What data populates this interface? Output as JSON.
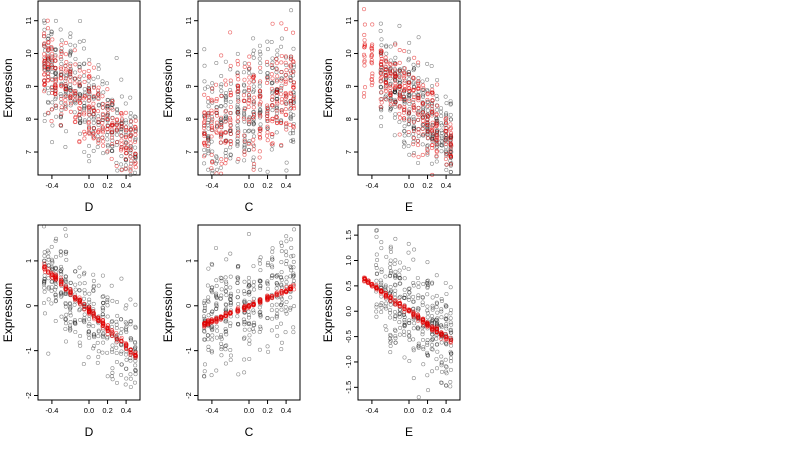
{
  "chart_data": [
    {
      "type": "scatter",
      "xlabel": "D",
      "ylabel": "Expression",
      "xlim": [
        -0.55,
        0.55
      ],
      "ylim": [
        6.3,
        11.6
      ],
      "xticks": [
        -0.4,
        0.0,
        0.2,
        0.4
      ],
      "xtick_labels": [
        "-0.4",
        "0.0",
        "0.2",
        "0.4"
      ],
      "yticks": [
        7,
        8,
        9,
        10,
        11
      ],
      "ytick_labels": [
        "7",
        "8",
        "9",
        "10",
        "11"
      ],
      "series": [
        {
          "role": "observed",
          "color": "#000000",
          "params": {
            "x_values": [
              -0.48,
              -0.44,
              -0.4,
              -0.36,
              -0.3,
              -0.25,
              -0.2,
              -0.15,
              -0.1,
              -0.05,
              0.0,
              0.05,
              0.1,
              0.15,
              0.2,
              0.25,
              0.3,
              0.35,
              0.4,
              0.45,
              0.5
            ],
            "intercept": 8.4,
            "slope": -2.6,
            "spread": 0.75,
            "n": 380,
            "seed": 11
          }
        },
        {
          "role": "fitted",
          "color": "#e00000",
          "params": {
            "x_values": [
              -0.48,
              -0.44,
              -0.4,
              -0.36,
              -0.3,
              -0.25,
              -0.2,
              -0.15,
              -0.1,
              -0.05,
              0.0,
              0.05,
              0.1,
              0.15,
              0.2,
              0.25,
              0.3,
              0.35,
              0.4,
              0.45,
              0.5
            ],
            "intercept": 8.4,
            "slope": -2.6,
            "spread": 0.55,
            "n": 300,
            "seed": 12
          }
        }
      ]
    },
    {
      "type": "scatter",
      "xlabel": "C",
      "ylabel": "Expression",
      "xlim": [
        -0.55,
        0.55
      ],
      "ylim": [
        6.3,
        11.6
      ],
      "xticks": [
        -0.4,
        0.0,
        0.2,
        0.4
      ],
      "xtick_labels": [
        "-0.4",
        "0.0",
        "0.2",
        "0.4"
      ],
      "yticks": [
        7,
        8,
        9,
        10,
        11
      ],
      "ytick_labels": [
        "7",
        "8",
        "9",
        "10",
        "11"
      ],
      "series": [
        {
          "role": "observed",
          "color": "#000000",
          "params": {
            "x_values": [
              -0.48,
              -0.44,
              -0.4,
              -0.35,
              -0.3,
              -0.25,
              -0.2,
              -0.12,
              -0.05,
              0.0,
              0.05,
              0.12,
              0.2,
              0.25,
              0.3,
              0.35,
              0.4,
              0.45,
              0.48
            ],
            "intercept": 8.3,
            "slope": 1.4,
            "spread": 0.95,
            "n": 340,
            "seed": 21
          }
        },
        {
          "role": "fitted",
          "color": "#e00000",
          "params": {
            "x_values": [
              -0.48,
              -0.44,
              -0.4,
              -0.35,
              -0.3,
              -0.25,
              -0.2,
              -0.12,
              -0.05,
              0.0,
              0.05,
              0.12,
              0.2,
              0.25,
              0.3,
              0.35,
              0.4,
              0.45,
              0.48
            ],
            "intercept": 8.3,
            "slope": 1.4,
            "spread": 0.8,
            "n": 280,
            "seed": 22
          }
        }
      ]
    },
    {
      "type": "scatter",
      "xlabel": "E",
      "ylabel": "Expression",
      "xlim": [
        -0.55,
        0.55
      ],
      "ylim": [
        6.3,
        11.6
      ],
      "xticks": [
        -0.4,
        0.0,
        0.2,
        0.4
      ],
      "xtick_labels": [
        "-0.4",
        "0.0",
        "0.2",
        "0.4"
      ],
      "yticks": [
        7,
        8,
        9,
        10,
        11
      ],
      "ytick_labels": [
        "7",
        "8",
        "9",
        "10",
        "11"
      ],
      "series": [
        {
          "role": "observed",
          "color": "#000000",
          "params": {
            "x_values": [
              -0.3,
              -0.25,
              -0.2,
              -0.15,
              -0.1,
              -0.05,
              0.0,
              0.05,
              0.1,
              0.15,
              0.2,
              0.25,
              0.3,
              0.35,
              0.4,
              0.45
            ],
            "intercept": 8.6,
            "slope": -2.8,
            "spread": 0.7,
            "n": 360,
            "seed": 31
          }
        },
        {
          "role": "fitted",
          "color": "#e00000",
          "params": {
            "x_values": [
              -0.48,
              -0.4,
              -0.3,
              -0.25,
              -0.2,
              -0.15,
              -0.1,
              -0.05,
              0.0,
              0.05,
              0.1,
              0.15,
              0.2,
              0.25,
              0.3,
              0.4,
              0.45
            ],
            "intercept": 8.6,
            "slope": -2.8,
            "spread": 0.55,
            "n": 300,
            "seed": 32
          }
        }
      ]
    },
    {
      "type": "scatter",
      "xlabel": "D",
      "ylabel": "Expression",
      "xlim": [
        -0.55,
        0.55
      ],
      "ylim": [
        -2.1,
        1.8
      ],
      "xticks": [
        -0.4,
        0.0,
        0.2,
        0.4
      ],
      "xtick_labels": [
        "-0.4",
        "0.0",
        "0.2",
        "0.4"
      ],
      "yticks": [
        -2,
        -1,
        0,
        1
      ],
      "ytick_labels": [
        "-2",
        "-1",
        "0",
        "1"
      ],
      "series": [
        {
          "role": "observed",
          "color": "#000000",
          "params": {
            "x_values": [
              -0.48,
              -0.44,
              -0.4,
              -0.36,
              -0.3,
              -0.25,
              -0.2,
              -0.15,
              -0.1,
              -0.05,
              0.0,
              0.05,
              0.1,
              0.15,
              0.2,
              0.25,
              0.3,
              0.35,
              0.4,
              0.45,
              0.5
            ],
            "intercept": -0.1,
            "slope": -2.0,
            "spread": 0.55,
            "n": 340,
            "seed": 41
          }
        },
        {
          "role": "fitted",
          "color": "#e00000",
          "params": {
            "x_values": [
              -0.48,
              -0.44,
              -0.4,
              -0.36,
              -0.3,
              -0.25,
              -0.2,
              -0.15,
              -0.1,
              -0.05,
              0.0,
              0.05,
              0.1,
              0.15,
              0.2,
              0.25,
              0.3,
              0.35,
              0.4,
              0.45,
              0.5
            ],
            "intercept": -0.1,
            "slope": -2.0,
            "spread": 0.04,
            "n": 220,
            "seed": 42
          }
        }
      ]
    },
    {
      "type": "scatter",
      "xlabel": "C",
      "ylabel": "Expression",
      "xlim": [
        -0.55,
        0.55
      ],
      "ylim": [
        -2.1,
        1.8
      ],
      "xticks": [
        -0.4,
        0.0,
        0.2,
        0.4
      ],
      "xtick_labels": [
        "-0.4",
        "0.0",
        "0.2",
        "0.4"
      ],
      "yticks": [
        -2,
        -1,
        0,
        1
      ],
      "ytick_labels": [
        "-2",
        "-1",
        "0",
        "1"
      ],
      "series": [
        {
          "role": "observed",
          "color": "#000000",
          "params": {
            "x_values": [
              -0.48,
              -0.44,
              -0.4,
              -0.35,
              -0.3,
              -0.25,
              -0.2,
              -0.12,
              -0.05,
              0.0,
              0.05,
              0.12,
              0.2,
              0.25,
              0.3,
              0.35,
              0.4,
              0.45,
              0.48
            ],
            "intercept": 0.0,
            "slope": 0.85,
            "spread": 0.6,
            "n": 340,
            "seed": 51
          }
        },
        {
          "role": "fitted",
          "color": "#e00000",
          "params": {
            "x_values": [
              -0.48,
              -0.44,
              -0.4,
              -0.35,
              -0.3,
              -0.25,
              -0.2,
              -0.12,
              -0.05,
              0.0,
              0.05,
              0.12,
              0.2,
              0.25,
              0.3,
              0.35,
              0.4,
              0.45,
              0.48
            ],
            "intercept": 0.0,
            "slope": 0.85,
            "spread": 0.03,
            "n": 200,
            "seed": 52
          }
        }
      ]
    },
    {
      "type": "scatter",
      "xlabel": "E",
      "ylabel": "Expression",
      "xlim": [
        -0.55,
        0.55
      ],
      "ylim": [
        -1.75,
        1.7
      ],
      "xticks": [
        -0.4,
        0.0,
        0.2,
        0.4
      ],
      "xtick_labels": [
        "-0.4",
        "0.0",
        "0.2",
        "0.4"
      ],
      "yticks": [
        -1.5,
        -1.0,
        -0.5,
        0.0,
        0.5,
        1.0,
        1.5
      ],
      "ytick_labels": [
        "-1.5",
        "-1.0",
        "-0.5",
        "0.0",
        "0.5",
        "1.0",
        "1.5"
      ],
      "series": [
        {
          "role": "observed",
          "color": "#000000",
          "params": {
            "x_values": [
              -0.35,
              -0.3,
              -0.25,
              -0.2,
              -0.15,
              -0.1,
              -0.05,
              0.0,
              0.05,
              0.1,
              0.15,
              0.2,
              0.25,
              0.3,
              0.35,
              0.4,
              0.45
            ],
            "intercept": 0.0,
            "slope": -1.3,
            "spread": 0.5,
            "n": 360,
            "seed": 61
          }
        },
        {
          "role": "fitted",
          "color": "#e00000",
          "params": {
            "x_values": [
              -0.48,
              -0.44,
              -0.4,
              -0.35,
              -0.3,
              -0.25,
              -0.2,
              -0.15,
              -0.1,
              -0.05,
              0.0,
              0.05,
              0.1,
              0.15,
              0.2,
              0.25,
              0.3,
              0.35,
              0.4,
              0.45
            ],
            "intercept": 0.0,
            "slope": -1.3,
            "spread": 0.03,
            "n": 220,
            "seed": 62
          }
        }
      ]
    }
  ]
}
